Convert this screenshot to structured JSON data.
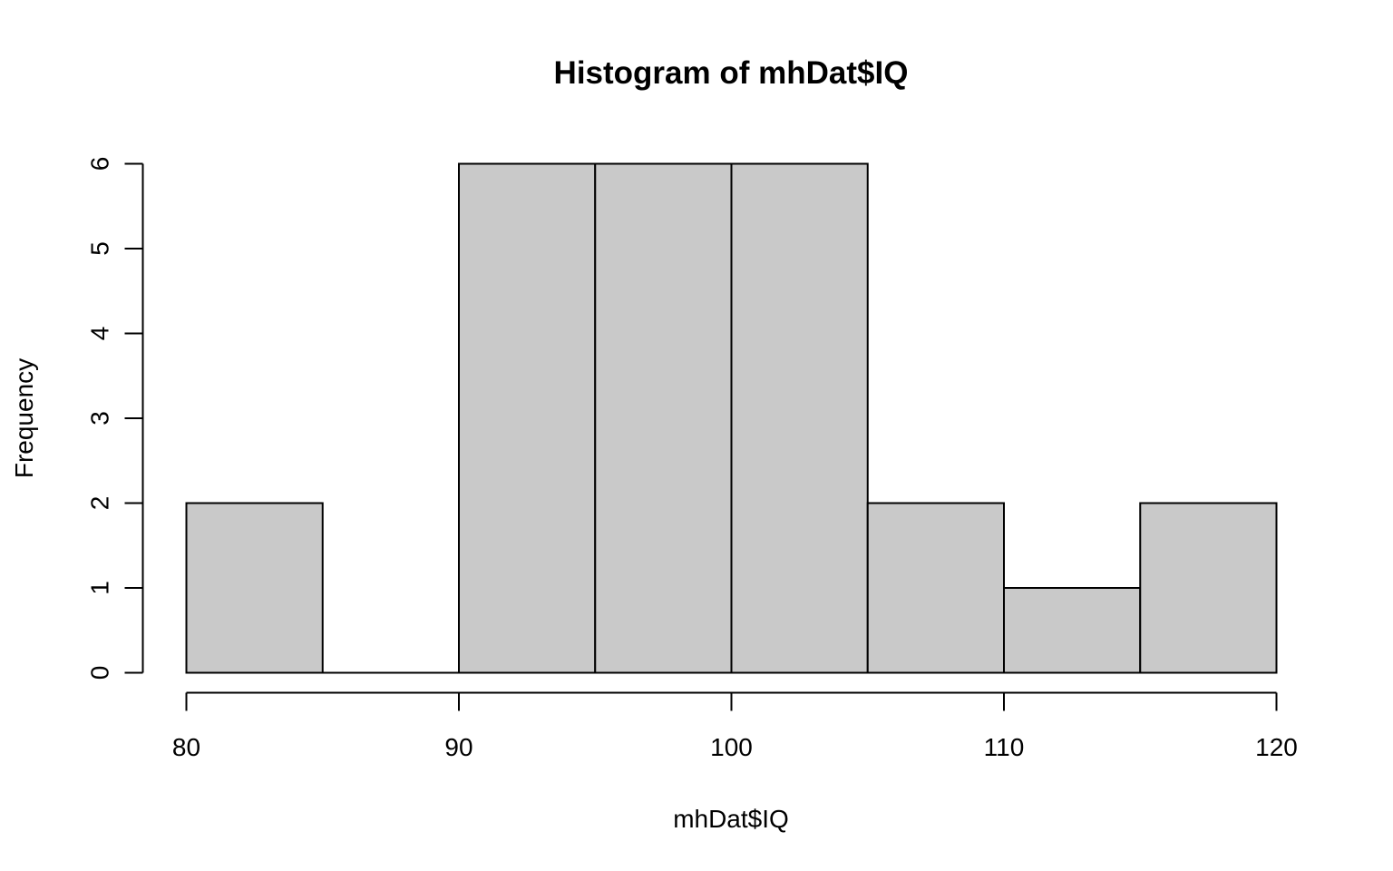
{
  "chart_data": {
    "type": "bar",
    "title": "Histogram of mhDat$IQ",
    "xlabel": "mhDat$IQ",
    "ylabel": "Frequency",
    "bins": [
      {
        "start": 80,
        "end": 85,
        "count": 2
      },
      {
        "start": 85,
        "end": 90,
        "count": 0
      },
      {
        "start": 90,
        "end": 95,
        "count": 6
      },
      {
        "start": 95,
        "end": 100,
        "count": 6
      },
      {
        "start": 100,
        "end": 105,
        "count": 6
      },
      {
        "start": 105,
        "end": 110,
        "count": 2
      },
      {
        "start": 110,
        "end": 115,
        "count": 1
      },
      {
        "start": 115,
        "end": 120,
        "count": 2
      }
    ],
    "xlim": [
      80,
      120
    ],
    "ylim": [
      0,
      6
    ],
    "x_ticks": [
      80,
      90,
      100,
      110,
      120
    ],
    "y_ticks": [
      0,
      1,
      2,
      3,
      4,
      5,
      6
    ],
    "bar_fill": "#c9c9c9",
    "bar_stroke": "#000000",
    "grid": false,
    "legend": "none"
  }
}
